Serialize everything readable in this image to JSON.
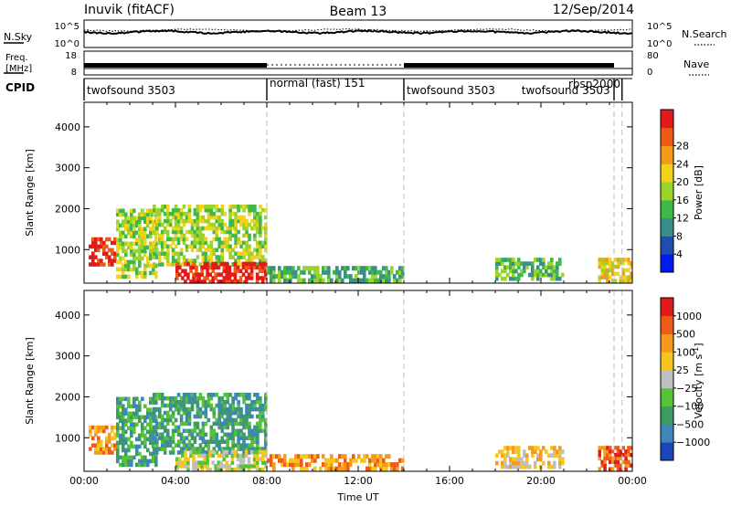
{
  "header": {
    "station": "Inuvik (fitACF)",
    "beam": "Beam 13",
    "date": "12/Sep/2014"
  },
  "noise_panel": {
    "left_label": "N.Sky",
    "left_top_tick": "10^5",
    "left_bottom_tick": "10^0",
    "right_label": "N.Search",
    "right_top_tick": "10^5",
    "right_bottom_tick": "10^0"
  },
  "freq_panel": {
    "left_label_1": "Freq.",
    "left_label_2": "[MHz]",
    "left_top_tick": "18",
    "left_bottom_tick": "8",
    "right_label": "Nave",
    "right_top_tick": "80",
    "right_bottom_tick": "0"
  },
  "cpid_panel": {
    "label": "CPID",
    "segments": [
      {
        "name": "twofsound 3503",
        "start": 0,
        "end": 8
      },
      {
        "name": "normal (fast) 151",
        "start": 8,
        "end": 14
      },
      {
        "name": "twofsound 3503",
        "start": 14,
        "end": 23.2
      },
      {
        "name": "rbsp2000",
        "start": 23.2,
        "end": 23.55
      },
      {
        "name": "twofsound 3503",
        "start": 23.55,
        "end": 23.8
      }
    ]
  },
  "chart_data": [
    {
      "type": "heatmap",
      "name": "power",
      "ylabel": "Slant Range [km]",
      "colorbar_label": "Power [dB]",
      "x_range_hours": [
        0,
        24
      ],
      "ylim": [
        180,
        4600
      ],
      "x_tick_labels": [
        "00:00",
        "04:00",
        "08:00",
        "12:00",
        "16:00",
        "20:00",
        "00:00"
      ],
      "y_tick_labels": [
        "1000",
        "2000",
        "3000",
        "4000"
      ],
      "colorbar_ticks": [
        "4",
        "8",
        "12",
        "16",
        "20",
        "24",
        "28"
      ],
      "colorbar_colors": [
        "#0019f0",
        "#1f4eb0",
        "#3a8f8a",
        "#3fb84a",
        "#9ad32a",
        "#f2d21b",
        "#f39a1a",
        "#ec5a14",
        "#e31a1c"
      ],
      "mode_change_hours": [
        8,
        14,
        23.2,
        23.55
      ],
      "regions": [
        {
          "t0": 0.2,
          "t1": 1.4,
          "r0": 600,
          "r1": 1300,
          "level": 8
        },
        {
          "t0": 1.4,
          "t1": 3.2,
          "r0": 300,
          "r1": 2000,
          "level": 4
        },
        {
          "t0": 3.0,
          "t1": 8.0,
          "r0": 600,
          "r1": 2100,
          "level": 4
        },
        {
          "t0": 4.0,
          "t1": 8.0,
          "r0": 180,
          "r1": 700,
          "level": 8
        },
        {
          "t0": 8.0,
          "t1": 14.0,
          "r0": 200,
          "r1": 600,
          "level": 3
        },
        {
          "t0": 18.0,
          "t1": 21.0,
          "r0": 250,
          "r1": 800,
          "level": 3
        },
        {
          "t0": 22.5,
          "t1": 24.0,
          "r0": 200,
          "r1": 800,
          "level": 5
        }
      ]
    },
    {
      "type": "heatmap",
      "name": "velocity",
      "ylabel": "Slant Range [km]",
      "colorbar_label": "Velocity [m s",
      "colorbar_label_sup": "-1",
      "colorbar_label_end": "]",
      "x_range_hours": [
        0,
        24
      ],
      "ylim": [
        180,
        4600
      ],
      "x_tick_labels": [
        "00:00",
        "04:00",
        "08:00",
        "12:00",
        "16:00",
        "20:00",
        "00:00"
      ],
      "y_tick_labels": [
        "1000",
        "2000",
        "3000",
        "4000"
      ],
      "xlabel": "Time UT",
      "colorbar_ticks": [
        "1000",
        "500",
        "100",
        "25",
        "−25",
        "−100",
        "−500",
        "−1000"
      ],
      "colorbar_colors": [
        "#1b45b8",
        "#3c86b8",
        "#3f9b64",
        "#55c23a",
        "#bfbfbf",
        "#f6c51f",
        "#f59a1d",
        "#ee5a17",
        "#e31a1c"
      ],
      "mode_change_hours": [
        8,
        14,
        23.2,
        23.55
      ],
      "regions": [
        {
          "t0": 0.2,
          "t1": 1.4,
          "r0": 600,
          "r1": 1300,
          "level": 6
        },
        {
          "t0": 1.4,
          "t1": 3.2,
          "r0": 300,
          "r1": 2000,
          "level": 2
        },
        {
          "t0": 3.0,
          "t1": 8.0,
          "r0": 600,
          "r1": 2100,
          "level": 2
        },
        {
          "t0": 4.0,
          "t1": 8.0,
          "r0": 180,
          "r1": 700,
          "level": 4
        },
        {
          "t0": 8.0,
          "t1": 14.0,
          "r0": 200,
          "r1": 600,
          "level": 6
        },
        {
          "t0": 18.0,
          "t1": 21.0,
          "r0": 250,
          "r1": 800,
          "level": 5
        },
        {
          "t0": 22.5,
          "t1": 24.0,
          "r0": 200,
          "r1": 800,
          "level": 7
        }
      ]
    }
  ]
}
